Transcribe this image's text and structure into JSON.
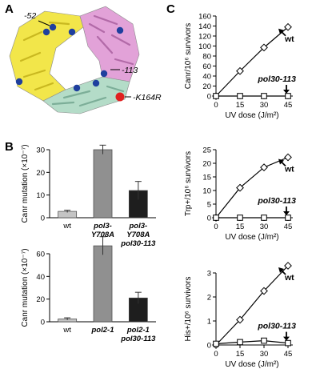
{
  "panels": {
    "a": "A",
    "b": "B",
    "c": "C"
  },
  "structure": {
    "labels": [
      "-52",
      "-113",
      "-K164R"
    ],
    "colors": {
      "subunit_yellow": "#f2e64a",
      "subunit_pink": "#e2a2d8",
      "subunit_green": "#b4dcc8",
      "residue_blue": "#1f3f9e",
      "mutation_red": "#e02020"
    }
  },
  "chart_data": [
    {
      "type": "bar",
      "panel": "B",
      "ylabel": "Canr mutation (×10⁻⁷)",
      "ylim": [
        0,
        30
      ],
      "yticks": [
        0,
        10,
        20,
        30
      ],
      "categories": [
        {
          "lines": [
            "wt"
          ],
          "italic": false
        },
        {
          "lines": [
            "pol3-",
            "Y708A"
          ],
          "italic": true
        },
        {
          "lines": [
            "pol3-",
            "Y708A",
            "pol30-113"
          ],
          "italic": true
        }
      ],
      "values": [
        2.8,
        30.0,
        12.0
      ],
      "errors": [
        0.5,
        2.0,
        4.0
      ],
      "colors": [
        "#c4c4c4",
        "#909090",
        "#1e1e1e"
      ]
    },
    {
      "type": "bar",
      "panel": "B",
      "ylabel": "Canr mutation (×10⁻⁷)",
      "ylim": [
        0,
        60
      ],
      "yticks": [
        0,
        20,
        40,
        60
      ],
      "categories": [
        {
          "lines": [
            "wt"
          ],
          "italic": false
        },
        {
          "lines": [
            "pol2-1"
          ],
          "italic": true
        },
        {
          "lines": [
            "pol2-1",
            "pol30-113"
          ],
          "italic": true
        }
      ],
      "values": [
        2.5,
        67.0,
        21.0
      ],
      "errors": [
        1.0,
        8.0,
        5.0
      ],
      "colors": [
        "#c4c4c4",
        "#909090",
        "#1e1e1e"
      ]
    },
    {
      "type": "line",
      "panel": "C",
      "ylabel": "Canr/10⁶ survivors",
      "xlabel": "UV dose (J/m²)",
      "x": [
        0,
        15,
        30,
        45
      ],
      "xlim": [
        0,
        45
      ],
      "ylim": [
        0,
        160
      ],
      "yticks": [
        0,
        20,
        40,
        60,
        80,
        100,
        120,
        140,
        160
      ],
      "series": [
        {
          "name": "wt",
          "values": [
            0,
            50,
            97,
            138
          ]
        },
        {
          "name": "pol30-113",
          "values": [
            0,
            0,
            0,
            0
          ]
        }
      ]
    },
    {
      "type": "line",
      "panel": "C",
      "ylabel": "Trp+/10⁶ survivors",
      "xlabel": "UV dose (J/m²)",
      "x": [
        0,
        15,
        30,
        45
      ],
      "xlim": [
        0,
        45
      ],
      "ylim": [
        0,
        25
      ],
      "yticks": [
        0,
        5,
        10,
        15,
        20,
        25
      ],
      "series": [
        {
          "name": "wt",
          "values": [
            0,
            11,
            18.5,
            22.2
          ]
        },
        {
          "name": "pol30-113",
          "values": [
            0,
            0,
            0,
            0
          ]
        }
      ]
    },
    {
      "type": "line",
      "panel": "C",
      "ylabel": "His+/10⁶ survivors",
      "xlabel": "UV dose (J/m²)",
      "x": [
        0,
        15,
        30,
        45
      ],
      "xlim": [
        0,
        45
      ],
      "ylim": [
        0,
        3
      ],
      "yticks": [
        0,
        1,
        2,
        3
      ],
      "series": [
        {
          "name": "wt",
          "values": [
            0,
            1.05,
            2.25,
            3.3
          ]
        },
        {
          "name": "pol30-113",
          "values": [
            0.05,
            0.12,
            0.18,
            0.08
          ]
        }
      ]
    }
  ]
}
